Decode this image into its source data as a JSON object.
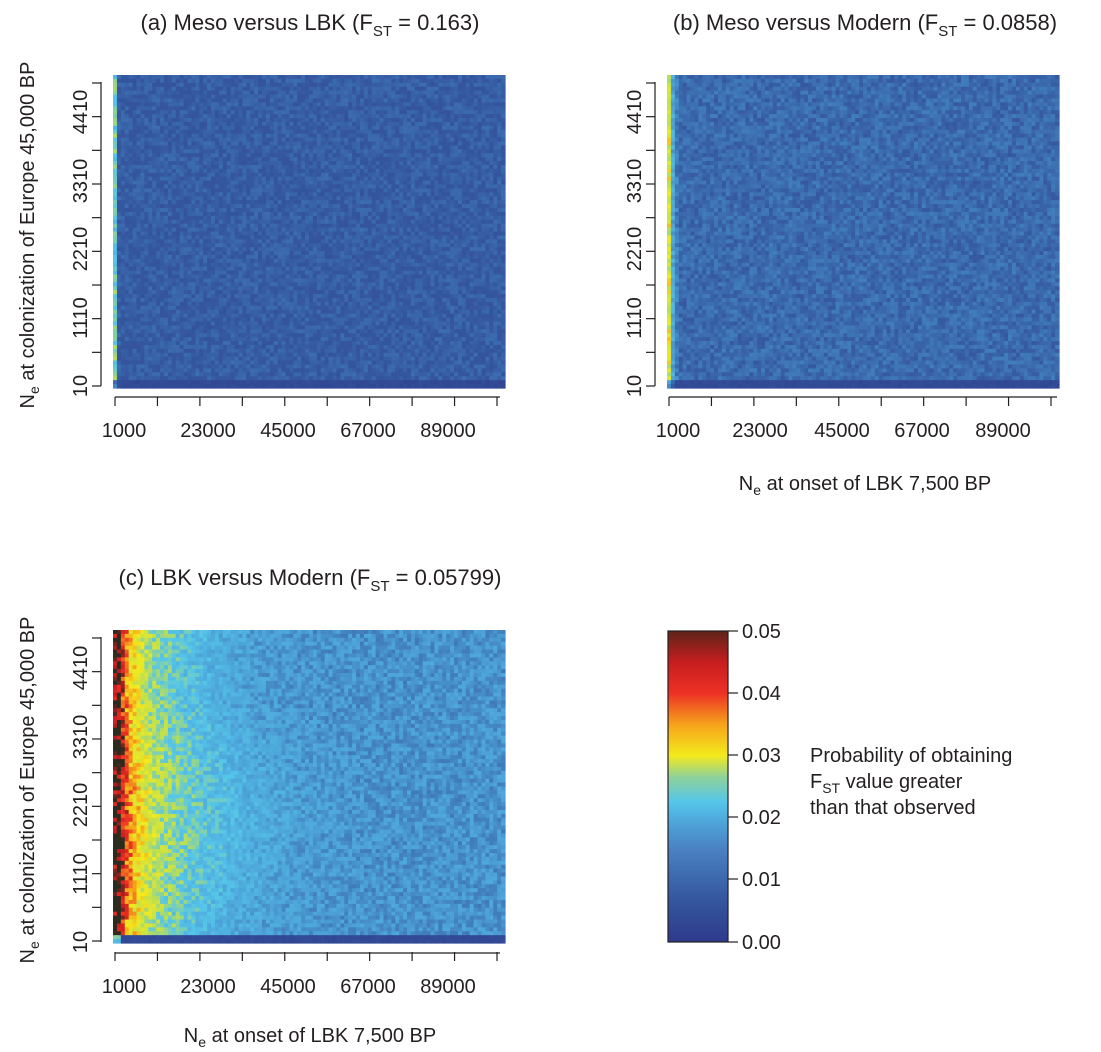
{
  "figure": {
    "panels": [
      {
        "id": "a",
        "title_main": "(a) Meso versus LBK (F",
        "title_sub": "ST",
        "title_end": " = 0.163)",
        "ylabel_main": "N",
        "ylabel_sub": "e",
        "ylabel_end": " at colonization of Europe 45,000 BP",
        "xlabel_main": "",
        "xlabel_sub": "",
        "xlabel_end": ""
      },
      {
        "id": "b",
        "title_main": "(b) Meso versus Modern (F",
        "title_sub": "ST",
        "title_end": " = 0.0858)",
        "ylabel_main": "",
        "ylabel_sub": "",
        "ylabel_end": "",
        "xlabel_main": "N",
        "xlabel_sub": "e",
        "xlabel_end": " at onset of LBK 7,500 BP"
      },
      {
        "id": "c",
        "title_main": "(c) LBK versus Modern (F",
        "title_sub": "ST",
        "title_end": " = 0.05799)",
        "ylabel_main": "N",
        "ylabel_sub": "e",
        "ylabel_end": " at colonization of Europe 45,000 BP",
        "xlabel_main": "N",
        "xlabel_sub": "e",
        "xlabel_end": " at onset of LBK 7,500 BP"
      }
    ],
    "legend": {
      "ticks": [
        "0.05",
        "0.04",
        "0.03",
        "0.02",
        "0.01",
        "0.00"
      ],
      "label_line1": "Probability of obtaining",
      "label_line2_main": "F",
      "label_line2_sub": "ST",
      "label_line2_end": " value greater",
      "label_line3": "than that observed"
    }
  },
  "chart_data": [
    {
      "type": "heatmap",
      "title": "(a) Meso versus LBK (FST = 0.163)",
      "xlabel": "",
      "ylabel": "Ne at colonization of Europe 45,000 BP",
      "x_ticks": [
        "1000",
        "23000",
        "45000",
        "67000",
        "89000"
      ],
      "y_ticks": [
        "10",
        "1110",
        "2210",
        "3310",
        "4410"
      ],
      "xlim": [
        1000,
        100000
      ],
      "ylim": [
        10,
        5000
      ],
      "value_range": [
        0.0,
        0.05
      ],
      "background_value": 0.006,
      "low_edge_value": 0.018,
      "profile_x": [
        0,
        0.4,
        1.0
      ],
      "profile_v": [
        0.018,
        0.01,
        0.006
      ],
      "bottom_band_value": 0.003,
      "colormap": [
        "#2e3a8c",
        "#35579f",
        "#4da3d8",
        "#55c6ea",
        "#c2e04b",
        "#f4ea1c",
        "#f6a21b",
        "#ed3125",
        "#c61d1f",
        "#2b2b1e"
      ]
    },
    {
      "type": "heatmap",
      "title": "(b) Meso versus Modern (FST = 0.0858)",
      "xlabel": "Ne at onset of LBK 7,500 BP",
      "ylabel": "",
      "x_ticks": [
        "1000",
        "23000",
        "45000",
        "67000",
        "89000"
      ],
      "y_ticks": [
        "10",
        "1110",
        "2210",
        "3310",
        "4410"
      ],
      "xlim": [
        1000,
        100000
      ],
      "ylim": [
        10,
        5000
      ],
      "value_range": [
        0.0,
        0.05
      ],
      "background_value": 0.007,
      "low_edge_value": 0.026,
      "profile_x": [
        0,
        0.3,
        0.7,
        1.6,
        3.0
      ],
      "profile_v": [
        0.026,
        0.02,
        0.014,
        0.009,
        0.007
      ],
      "bottom_band_value": 0.003
    },
    {
      "type": "heatmap",
      "title": "(c) LBK versus Modern (FST = 0.05799)",
      "xlabel": "Ne at onset of LBK 7,500 BP",
      "ylabel": "Ne at colonization of Europe 45,000 BP",
      "x_ticks": [
        "1000",
        "23000",
        "45000",
        "67000",
        "89000"
      ],
      "y_ticks": [
        "10",
        "1110",
        "2210",
        "3310",
        "4410"
      ],
      "xlim": [
        1000,
        100000
      ],
      "ylim": [
        10,
        5000
      ],
      "value_range": [
        0.0,
        0.05
      ],
      "background_value": 0.008,
      "low_edge_value": 0.05,
      "profile_x": [
        0,
        0.9,
        1.5,
        2.5,
        4,
        6,
        8,
        12,
        18,
        26,
        36,
        50
      ],
      "profile_v": [
        0.05,
        0.05,
        0.045,
        0.036,
        0.03,
        0.026,
        0.022,
        0.019,
        0.016,
        0.013,
        0.011,
        0.01
      ],
      "bottom_band_value": 0.003
    }
  ]
}
